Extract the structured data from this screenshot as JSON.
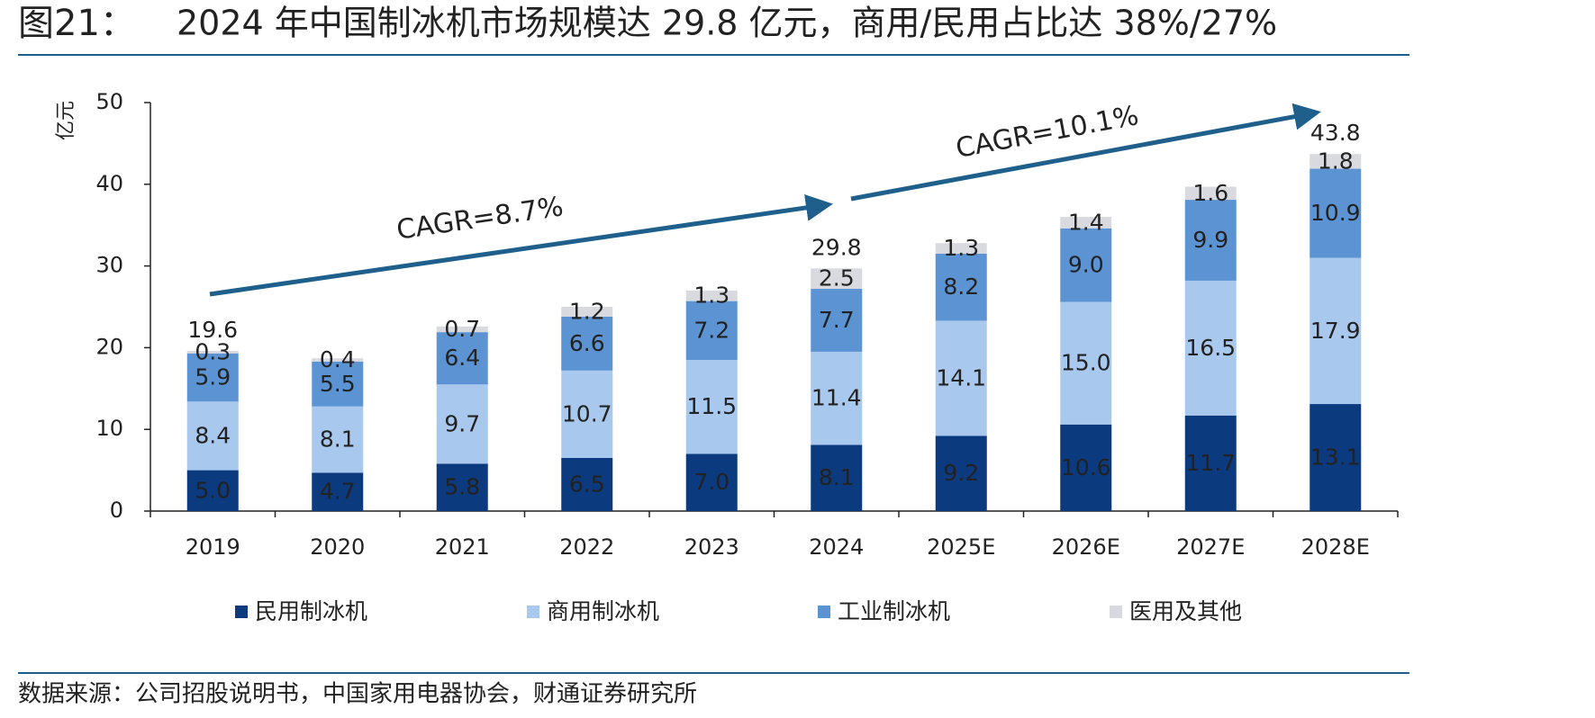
{
  "header": {
    "figure_no": "图21：",
    "title": "2024 年中国制冰机市场规模达 29.8 亿元，商用/民用占比达 38%/27%"
  },
  "chart_data": {
    "type": "stacked_bar",
    "y_label": "亿元",
    "categories": [
      "2019",
      "2020",
      "2021",
      "2022",
      "2023",
      "2024",
      "2025E",
      "2026E",
      "2027E",
      "2028E"
    ],
    "series": [
      {
        "name": "民用制冰机",
        "color": "#0c3a7f",
        "label_color": "#ffffff",
        "values": [
          5.0,
          4.7,
          5.8,
          6.5,
          7.0,
          8.1,
          9.2,
          10.6,
          11.7,
          13.1
        ],
        "value_labels": [
          "5.0",
          "4.7",
          "5.8",
          "6.5",
          "7.0",
          "8.1",
          "9.2",
          "10.6",
          "11.7",
          "13.1"
        ]
      },
      {
        "name": "商用制冰机",
        "color": "#a9c8ee",
        "label_color": "#222222",
        "values": [
          8.4,
          8.1,
          9.7,
          10.7,
          11.5,
          11.4,
          14.1,
          15.0,
          16.5,
          17.9
        ],
        "value_labels": [
          "8.4",
          "8.1",
          "9.7",
          "10.7",
          "11.5",
          "11.4",
          "14.1",
          "15.0",
          "16.5",
          "17.9"
        ]
      },
      {
        "name": "工业制冰机",
        "color": "#5b93d3",
        "label_color": "#222222",
        "values": [
          5.9,
          5.5,
          6.4,
          6.6,
          7.2,
          7.7,
          8.2,
          9.0,
          9.9,
          10.9
        ],
        "value_labels": [
          "5.9",
          "5.5",
          "6.4",
          "6.6",
          "7.2",
          "7.7",
          "8.2",
          "9.0",
          "9.9",
          "10.9"
        ]
      },
      {
        "name": "医用及其他",
        "color": "#d8dadf",
        "label_color": "#222222",
        "values": [
          0.3,
          0.4,
          0.7,
          1.2,
          1.3,
          2.5,
          1.3,
          1.4,
          1.6,
          1.8
        ],
        "value_labels": [
          "0.3",
          "0.4",
          "0.7",
          "1.2",
          "1.3",
          "2.5",
          "1.3",
          "1.4",
          "1.6",
          "1.8"
        ]
      }
    ],
    "totals": [
      19.6,
      null,
      null,
      null,
      null,
      29.8,
      null,
      null,
      null,
      43.8
    ],
    "ylim": [
      0,
      50
    ],
    "yticks": [
      0,
      10,
      20,
      30,
      40,
      50
    ],
    "annotations": [
      "CAGR=8.7%",
      "CAGR=10.1%"
    ]
  },
  "footer": {
    "source": "数据来源：公司招股说明书，中国家用电器协会，财通证券研究所"
  }
}
